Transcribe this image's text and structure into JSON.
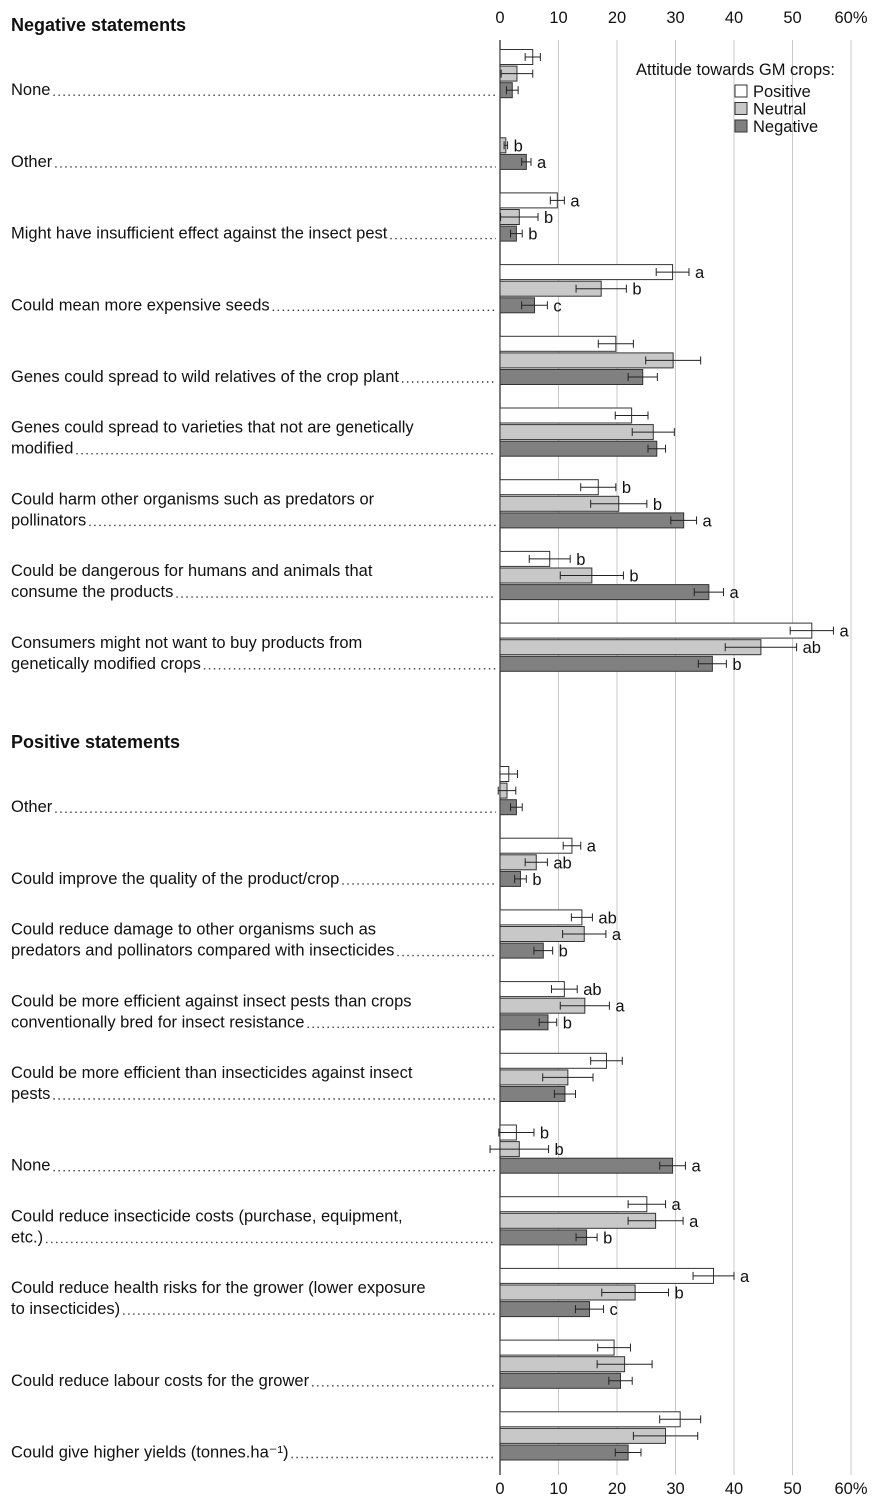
{
  "chart_data": {
    "type": "bar",
    "orientation": "horizontal",
    "xlim": [
      0,
      60
    ],
    "xticks": [
      0,
      10,
      20,
      30,
      40,
      50,
      {
        "value": 60,
        "label": "60%"
      }
    ],
    "grid": true,
    "legend_title": "Attitude towards GM crops:",
    "legend": "upper right",
    "series": [
      {
        "name": "Positive",
        "color": "#ffffff"
      },
      {
        "name": "Neutral",
        "color": "#c8c8c8"
      },
      {
        "name": "Negative",
        "color": "#808080"
      }
    ],
    "sections": [
      {
        "title": "Negative statements",
        "categories": [
          [
            "None"
          ],
          [
            "Other"
          ],
          [
            "Might have insufficient effect against the insect pest"
          ],
          [
            "Could mean more expensive seeds"
          ],
          [
            "Genes could spread to wild relatives of the crop plant"
          ],
          [
            "Genes could spread to varieties that not are genetically",
            "modified"
          ],
          [
            "Could harm other organisms such as predators or",
            "pollinators"
          ],
          [
            "Could be dangerous for humans and animals that",
            "consume the products"
          ],
          [
            "Consumers might not want to buy products from",
            "genetically modified crops"
          ]
        ],
        "series": [
          {
            "values": [
              5.6,
              0,
              9.8,
              29.5,
              19.8,
              22.5,
              16.8,
              8.5,
              53.3
            ],
            "errors": [
              1.3,
              0,
              1.2,
              2.8,
              3.0,
              2.8,
              3.0,
              3.5,
              3.7
            ],
            "annotations": [
              null,
              null,
              "a",
              "a",
              null,
              null,
              "b",
              "b",
              "a"
            ]
          },
          {
            "values": [
              2.9,
              1.0,
              3.3,
              17.3,
              29.6,
              26.2,
              20.3,
              15.7,
              44.6
            ],
            "errors": [
              2.7,
              0.3,
              3.2,
              4.3,
              4.7,
              3.6,
              4.8,
              5.4,
              6.1
            ],
            "annotations": [
              null,
              "b",
              "b",
              "b",
              null,
              null,
              "b",
              "b",
              "ab"
            ]
          },
          {
            "values": [
              2.1,
              4.5,
              2.8,
              5.9,
              24.4,
              26.8,
              31.4,
              35.7,
              36.3
            ],
            "errors": [
              1.0,
              0.8,
              1.0,
              2.2,
              2.5,
              1.5,
              2.2,
              2.5,
              2.4
            ],
            "annotations": [
              null,
              "a",
              "b",
              "c",
              null,
              null,
              "a",
              "a",
              "b"
            ]
          }
        ]
      },
      {
        "title": "Positive statements",
        "categories": [
          [
            "Other"
          ],
          [
            "Could improve the quality of the product/crop"
          ],
          [
            "Could reduce damage to other organisms such as",
            "predators and pollinators compared with insecticides"
          ],
          [
            "Could be more efficient against insect pests than crops",
            "conventionally bred for insect resistance"
          ],
          [
            "Could be more efficient than insecticides against insect",
            "pests"
          ],
          [
            "None"
          ],
          [
            "Could reduce insecticide costs (purchase, equipment,",
            "etc.)"
          ],
          [
            "Could reduce health risks for the grower (lower exposure",
            "to insecticides)"
          ],
          [
            "Could reduce labour costs for the grower"
          ],
          [
            "Could give higher yields (tonnes.ha⁻¹)"
          ]
        ],
        "series": [
          {
            "values": [
              1.5,
              12.3,
              14.0,
              11.0,
              18.2,
              2.8,
              25.1,
              36.5,
              19.5,
              30.8
            ],
            "errors": [
              1.5,
              1.5,
              1.8,
              2.2,
              2.7,
              3.0,
              3.2,
              3.5,
              2.8,
              3.5
            ],
            "annotations": [
              null,
              "a",
              "ab",
              "ab",
              null,
              "b",
              "a",
              "a",
              null,
              null
            ]
          },
          {
            "values": [
              1.2,
              6.2,
              14.4,
              14.5,
              11.6,
              3.3,
              26.6,
              23.1,
              21.3,
              28.3
            ],
            "errors": [
              1.5,
              1.9,
              3.7,
              4.2,
              4.3,
              5.0,
              4.7,
              5.7,
              4.7,
              5.5
            ],
            "annotations": [
              null,
              "ab",
              "a",
              "a",
              null,
              "b",
              "a",
              "b",
              null,
              null
            ]
          },
          {
            "values": [
              2.8,
              3.5,
              7.4,
              8.2,
              11.1,
              29.5,
              14.8,
              15.3,
              20.6,
              21.9
            ],
            "errors": [
              1.0,
              1.0,
              1.6,
              1.5,
              1.8,
              2.2,
              1.8,
              2.4,
              2.0,
              2.2
            ],
            "annotations": [
              null,
              "b",
              "b",
              "b",
              null,
              "a",
              "b",
              "c",
              null,
              null
            ]
          }
        ]
      }
    ]
  }
}
